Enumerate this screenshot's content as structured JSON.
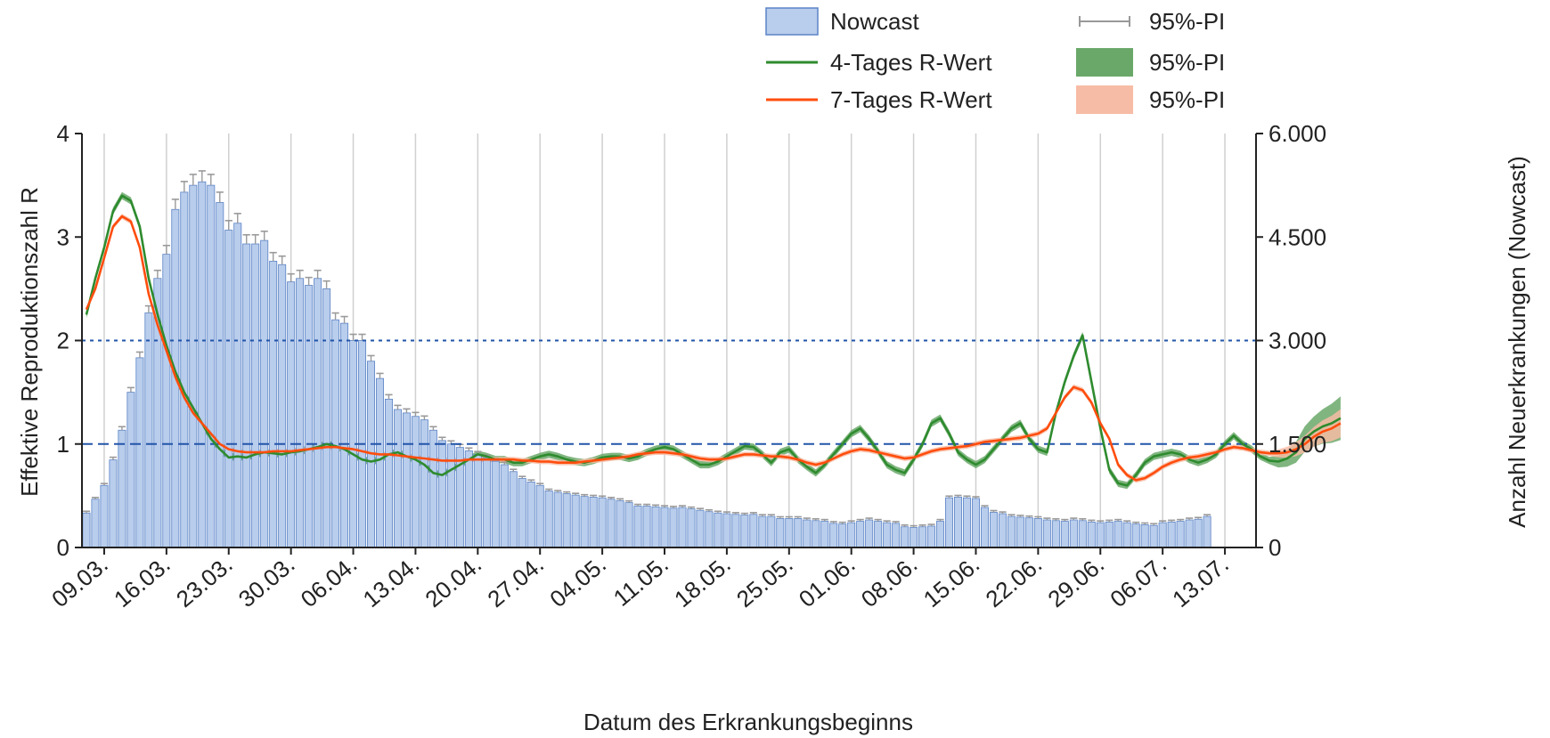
{
  "chart_data": {
    "type": "bar",
    "title": "",
    "xlabel": "Datum des Erkrankungsbeginns",
    "ylabel_left": "Effektive Reproduktionszahl R",
    "ylabel_right": "Anzahl Neuerkrankungen (Nowcast)",
    "ylim_left": [
      0,
      4
    ],
    "ylim_right": [
      0,
      6000
    ],
    "yticks_left": [
      "0",
      "1",
      "2",
      "3",
      "4"
    ],
    "yticks_right": [
      "0",
      "1.500",
      "3.000",
      "4.500",
      "6.000"
    ],
    "date_range": [
      "2020-03-07",
      "2020-07-16"
    ],
    "xticks": [
      "09.03.",
      "16.03.",
      "23.03.",
      "30.03.",
      "06.04.",
      "13.04.",
      "20.04.",
      "27.04.",
      "04.05.",
      "11.05.",
      "18.05.",
      "25.05.",
      "01.06.",
      "08.06.",
      "15.06.",
      "22.06.",
      "29.06.",
      "06.07.",
      "13.07."
    ],
    "grid": "vertical gridlines at x-ticks",
    "reference_lines": [
      {
        "axis": "left",
        "value": 1,
        "style": "dashed",
        "color": "#2255aa"
      },
      {
        "axis": "left",
        "value": 2,
        "style": "dotted",
        "color": "#2255aa"
      }
    ],
    "legend": {
      "placement": "top-right",
      "entries": [
        {
          "label": "Nowcast",
          "kind": "bar"
        },
        {
          "label": "4-Tages R-Wert",
          "kind": "line",
          "color": "#2e8b2e"
        },
        {
          "label": "7-Tages R-Wert",
          "kind": "line",
          "color": "#ff4d0d"
        },
        {
          "label": "95%-PI",
          "kind": "errorbar",
          "color": "#999999"
        },
        {
          "label": "95%-PI",
          "kind": "band",
          "color": "#6aa86a"
        },
        {
          "label": "95%-PI",
          "kind": "band",
          "color": "#f7bca5"
        }
      ]
    },
    "colors": {
      "bar_fill": "#b9cdec",
      "bar_edge": "#5a83c6",
      "errorbar": "#9a9a9a",
      "r4": "#2e8b2e",
      "r4_band": "#6aa86a",
      "r7": "#ff4d0d",
      "r7_band": "#f7bca5",
      "ref_line": "#2255aa",
      "grid": "#d0d0d0"
    },
    "series": [
      {
        "name": "Nowcast",
        "axis": "right",
        "kind": "bar",
        "start_date": "2020-03-07",
        "values": [
          500,
          700,
          900,
          1270,
          1700,
          2250,
          2750,
          3400,
          3900,
          4250,
          4900,
          5150,
          5250,
          5300,
          5250,
          5000,
          4600,
          4700,
          4400,
          4400,
          4450,
          4150,
          4100,
          3850,
          3900,
          3800,
          3900,
          3750,
          3300,
          3250,
          3000,
          3000,
          2700,
          2450,
          2150,
          2000,
          1950,
          1900,
          1850,
          1700,
          1550,
          1500,
          1450,
          1400,
          1350,
          1300,
          1250,
          1200,
          1100,
          1000,
          950,
          900,
          820,
          800,
          780,
          760,
          740,
          730,
          720,
          700,
          680,
          650,
          600,
          600,
          590,
          580,
          570,
          580,
          560,
          540,
          520,
          500,
          490,
          480,
          470,
          480,
          450,
          450,
          420,
          420,
          420,
          400,
          390,
          380,
          350,
          340,
          360,
          380,
          400,
          380,
          360,
          350,
          300,
          290,
          300,
          310,
          380,
          720,
          730,
          720,
          710,
          580,
          510,
          490,
          450,
          440,
          430,
          420,
          400,
          390,
          380,
          400,
          390,
          370,
          360,
          370,
          380,
          360,
          340,
          330,
          320,
          360,
          370,
          380,
          400,
          410,
          450
        ]
      },
      {
        "name": "4-Tages R-Wert",
        "axis": "left",
        "kind": "line",
        "start_date": "2020-03-07",
        "values": [
          2.25,
          2.6,
          2.9,
          3.25,
          3.4,
          3.35,
          3.1,
          2.6,
          2.25,
          1.95,
          1.7,
          1.5,
          1.35,
          1.2,
          1.05,
          0.95,
          0.87,
          0.88,
          0.87,
          0.9,
          0.92,
          0.91,
          0.9,
          0.92,
          0.93,
          0.95,
          0.97,
          1.0,
          0.98,
          0.95,
          0.9,
          0.85,
          0.83,
          0.85,
          0.9,
          0.92,
          0.88,
          0.85,
          0.8,
          0.72,
          0.7,
          0.75,
          0.8,
          0.85,
          0.9,
          0.88,
          0.85,
          0.85,
          0.82,
          0.82,
          0.85,
          0.88,
          0.9,
          0.88,
          0.85,
          0.83,
          0.82,
          0.84,
          0.87,
          0.88,
          0.88,
          0.86,
          0.88,
          0.92,
          0.95,
          0.97,
          0.95,
          0.9,
          0.85,
          0.8,
          0.8,
          0.83,
          0.88,
          0.93,
          0.98,
          0.97,
          0.9,
          0.82,
          0.92,
          0.95,
          0.85,
          0.78,
          0.72,
          0.8,
          0.9,
          1.0,
          1.1,
          1.15,
          1.05,
          0.93,
          0.8,
          0.75,
          0.72,
          0.85,
          1.0,
          1.2,
          1.25,
          1.1,
          0.92,
          0.85,
          0.8,
          0.85,
          0.95,
          1.05,
          1.15,
          1.2,
          1.05,
          0.95,
          0.92,
          1.3,
          1.6,
          1.85,
          2.05,
          1.6,
          1.15,
          0.75,
          0.62,
          0.6,
          0.7,
          0.82,
          0.88,
          0.9,
          0.92,
          0.9,
          0.85,
          0.82,
          0.85,
          0.9,
          1.0,
          1.08,
          1.0,
          0.95,
          0.88,
          0.84,
          0.83,
          0.86,
          0.92,
          1.05,
          1.12,
          1.17,
          1.2,
          1.25
        ]
      },
      {
        "name": "7-Tages R-Wert",
        "axis": "left",
        "kind": "line",
        "start_date": "2020-03-07",
        "values": [
          2.3,
          2.5,
          2.8,
          3.1,
          3.2,
          3.15,
          2.9,
          2.45,
          2.15,
          1.9,
          1.65,
          1.45,
          1.3,
          1.2,
          1.1,
          1.0,
          0.95,
          0.93,
          0.92,
          0.92,
          0.92,
          0.93,
          0.93,
          0.93,
          0.94,
          0.95,
          0.96,
          0.97,
          0.97,
          0.96,
          0.95,
          0.93,
          0.91,
          0.9,
          0.9,
          0.89,
          0.88,
          0.87,
          0.86,
          0.85,
          0.84,
          0.84,
          0.84,
          0.85,
          0.85,
          0.85,
          0.85,
          0.85,
          0.85,
          0.84,
          0.84,
          0.83,
          0.83,
          0.82,
          0.82,
          0.82,
          0.83,
          0.84,
          0.85,
          0.86,
          0.87,
          0.88,
          0.9,
          0.91,
          0.92,
          0.92,
          0.91,
          0.9,
          0.88,
          0.86,
          0.85,
          0.85,
          0.86,
          0.88,
          0.9,
          0.9,
          0.89,
          0.88,
          0.88,
          0.87,
          0.85,
          0.82,
          0.8,
          0.82,
          0.86,
          0.9,
          0.93,
          0.95,
          0.94,
          0.92,
          0.9,
          0.88,
          0.86,
          0.87,
          0.9,
          0.93,
          0.95,
          0.96,
          0.97,
          0.98,
          1.0,
          1.02,
          1.03,
          1.04,
          1.05,
          1.06,
          1.08,
          1.1,
          1.15,
          1.3,
          1.45,
          1.55,
          1.52,
          1.4,
          1.2,
          1.05,
          0.8,
          0.7,
          0.65,
          0.67,
          0.72,
          0.78,
          0.82,
          0.85,
          0.87,
          0.88,
          0.9,
          0.92,
          0.95,
          0.97,
          0.96,
          0.94,
          0.92,
          0.91,
          0.91,
          0.92,
          0.95,
          1.0,
          1.07,
          1.12,
          1.15,
          1.2
        ]
      }
    ]
  }
}
